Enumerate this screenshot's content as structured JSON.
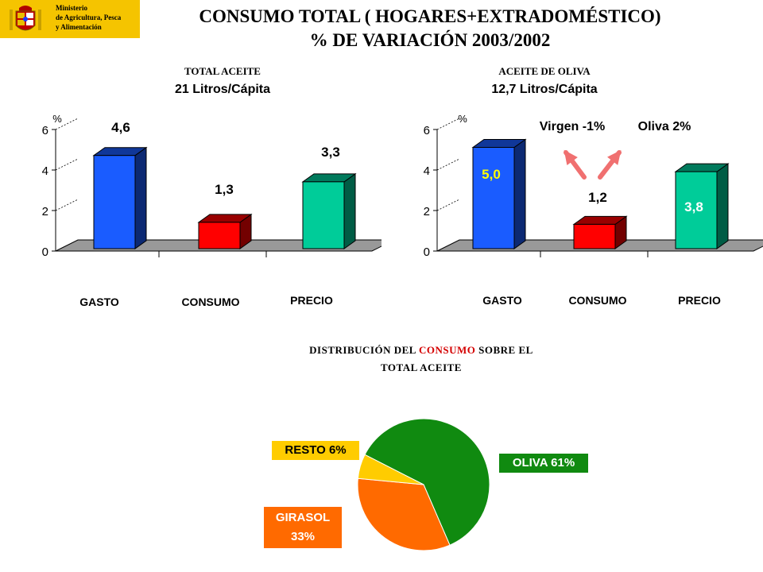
{
  "header": {
    "ministry_lines": [
      "Ministerio",
      "de Agricultura, Pesca",
      "y Alimentación"
    ],
    "title_line1": "CONSUMO TOTAL ( HOGARES+EXTRADOMÉSTICO)",
    "title_line2": "% DE VARIACIÓN 2003/2002",
    "colors": {
      "logo_bg": "#f5c400"
    }
  },
  "chart_data": [
    {
      "type": "bar",
      "title": "TOTAL ACEITE",
      "subtitle": "21 Litros/Cápita",
      "ylabel": "%",
      "ylim": [
        0,
        6
      ],
      "yticks": [
        "0",
        "2",
        "4",
        "6"
      ],
      "categories": [
        "GASTO",
        "CONSUMO",
        "PRECIO"
      ],
      "values": [
        4.6,
        1.3,
        3.3
      ],
      "value_labels": [
        "4,6",
        "1,3",
        "3,3"
      ],
      "colors": [
        "#1a5cff",
        "#ff0000",
        "#00cc99"
      ]
    },
    {
      "type": "bar",
      "title": "ACEITE DE OLIVA",
      "subtitle": "12,7 Litros/Cápita",
      "ylabel": "%",
      "ylim": [
        0,
        6
      ],
      "yticks": [
        "0",
        "2",
        "4",
        "6"
      ],
      "categories": [
        "GASTO",
        "CONSUMO",
        "PRECIO"
      ],
      "values": [
        5.0,
        1.2,
        3.8
      ],
      "value_labels": [
        "5,0",
        "1,2",
        "3,8"
      ],
      "colors": [
        "#1a5cff",
        "#ff0000",
        "#00cc99"
      ],
      "annotations": [
        "Virgen  -1%",
        "Oliva  2%"
      ],
      "arrow_color": "#f07070"
    },
    {
      "type": "pie",
      "title_part1": "DISTRIBUCIÓN DEL",
      "title_highlight": "CONSUMO",
      "title_part2": "SOBRE  EL",
      "title_line2": "TOTAL  ACEITE",
      "slices": [
        {
          "label": "OLIVA 61%",
          "value": 61,
          "color": "#108a10"
        },
        {
          "label": "GIRASOL 33%",
          "label_line1": "GIRASOL",
          "label_line2": "33%",
          "value": 33,
          "color": "#ff6a00"
        },
        {
          "label": "RESTO 6%",
          "value": 6,
          "color": "#ffcc00"
        }
      ]
    }
  ]
}
